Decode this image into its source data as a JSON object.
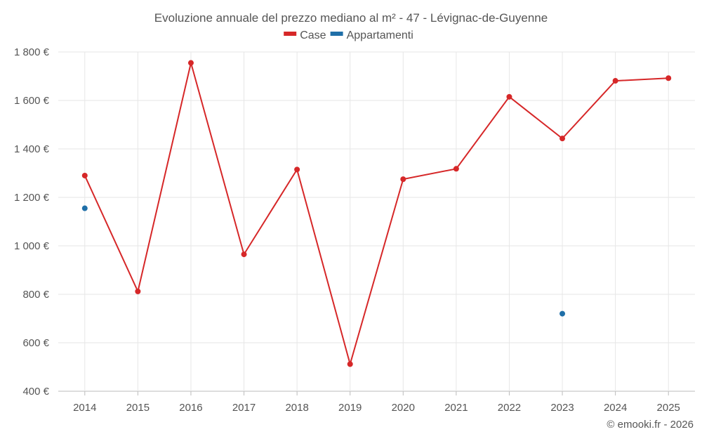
{
  "chart_data": {
    "type": "line",
    "title": "Evoluzione annuale del prezzo mediano al m² - 47 - Lévignac-de-Guyenne",
    "categories": [
      "2014",
      "2015",
      "2016",
      "2017",
      "2018",
      "2019",
      "2020",
      "2021",
      "2022",
      "2023",
      "2024",
      "2025"
    ],
    "ylim": [
      400,
      1800
    ],
    "yticks": [
      400,
      600,
      800,
      1000,
      1200,
      1400,
      1600,
      1800
    ],
    "ytick_labels": [
      "400 €",
      "600 €",
      "800 €",
      "1 000 €",
      "1 200 €",
      "1 400 €",
      "1 600 €",
      "1 800 €"
    ],
    "grid": true,
    "legend_position": "top-center",
    "series": [
      {
        "name": "Case",
        "color": "#d62728",
        "values": [
          1290,
          812,
          1755,
          965,
          1315,
          512,
          1275,
          1318,
          1615,
          1443,
          1681,
          1692
        ]
      },
      {
        "name": "Appartamenti",
        "color": "#1f6fa8",
        "values": [
          1155,
          null,
          null,
          null,
          null,
          null,
          null,
          null,
          null,
          720,
          null,
          null
        ]
      }
    ]
  },
  "credit": "© emooki.fr - 2026"
}
